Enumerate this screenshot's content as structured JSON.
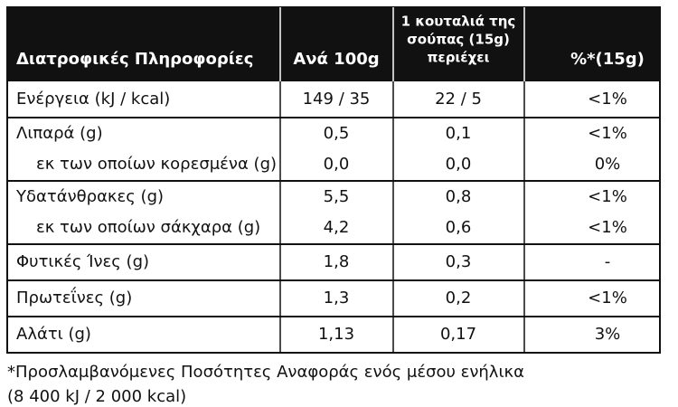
{
  "table": {
    "header": [
      "Διατροφικές Πληροφορίες",
      "Ανά 100g",
      [
        "1 κουταλιά της",
        "σούπας (15g)",
        "περιέχει"
      ],
      "%*(15g)"
    ],
    "groups": [
      [
        [
          "Ενέργεια (kJ / kcal)",
          "149 / 35",
          "22 / 5",
          "<1%"
        ]
      ],
      [
        [
          "Λιπαρά (g)",
          "0,5",
          "0,1",
          "<1%"
        ],
        [
          "εκ των οποίων κορεσμένα (g)",
          "0,0",
          "0,0",
          "0%"
        ]
      ],
      [
        [
          "Υδατάνθρακες (g)",
          "5,5",
          "0,8",
          "<1%"
        ],
        [
          "εκ των οποίων σάκχαρα (g)",
          "4,2",
          "0,6",
          "<1%"
        ]
      ],
      [
        [
          "Φυτικές Ίνες (g)",
          "1,8",
          "0,3",
          "-"
        ]
      ],
      [
        [
          "Πρωτεΐνες (g)",
          "1,3",
          "0,2",
          "<1%"
        ]
      ],
      [
        [
          "Αλάτι (g)",
          "1,13",
          "0,17",
          "3%"
        ]
      ]
    ]
  },
  "footnote": [
    "*Προσλαμβανόμενες Ποσότητες Αναφοράς ενός μέσου ενήλικα",
    "(8 400 kJ / 2 000 kcal)"
  ]
}
